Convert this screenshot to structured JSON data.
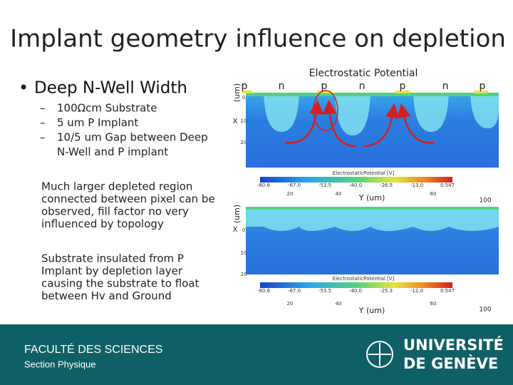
{
  "title": "Implant geometry influence on depletion",
  "bullet": {
    "heading": "Deep N-Well Width",
    "items": [
      "100Ωcm Substrate",
      "5 um P Implant",
      "10/5 um Gap between Deep",
      "N-Well and P implant"
    ]
  },
  "paragraphs": [
    [
      "Much larger depleted region",
      "connected between pixel can be",
      "observed, fill factor no very",
      "influenced by topology"
    ],
    [
      "Substrate insulated from P",
      "Implant by depletion layer",
      "causing the substrate to float",
      "between Hv and Ground"
    ]
  ],
  "top_plot": {
    "title": "Electrostatic Potential",
    "region_labels": [
      "p",
      "n",
      "p",
      "n",
      "p",
      "n",
      "p"
    ],
    "y_axis_label": "(um)",
    "y_axis_letter": "X",
    "y_ticks": [
      "0",
      "10",
      "20"
    ],
    "colorbar_title": "ElectrostaticPotential [V]",
    "colorbar_labels": [
      "-80.6",
      "-67.0",
      "-53.5",
      "-40.0",
      "-26.5",
      "-13.0",
      "0.547"
    ],
    "x_ticks": [
      "20",
      "40",
      "60"
    ],
    "x_axis_label": "Y (um)",
    "x_end": "100"
  },
  "bottom_plot": {
    "y_axis_label": "(um)",
    "y_axis_letter": "X",
    "y_ticks": [
      "0",
      "10",
      "20"
    ],
    "colorbar_title": "ElectrostaticPotential [V]",
    "colorbar_labels": [
      "-80.6",
      "-67.0",
      "-53.5",
      "-40.0",
      "-25.3",
      "-12.0",
      "0.547"
    ],
    "x_ticks": [
      "20",
      "40",
      "60"
    ],
    "x_axis_label": "Y (um)",
    "x_end": "100"
  },
  "footer": {
    "faculty": "FACULTÉ DES SCIENCES",
    "section": "Section Physique",
    "university": [
      "UNIVERSITÉ",
      "DE GENÈVE"
    ]
  }
}
